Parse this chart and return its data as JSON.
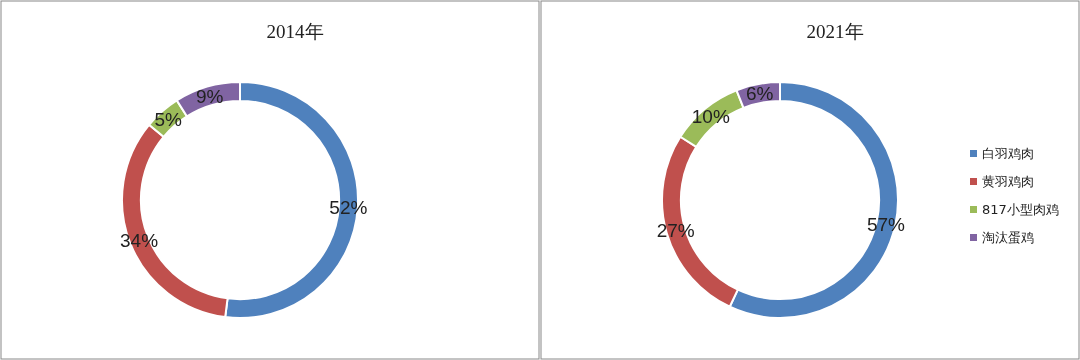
{
  "chart_data": [
    {
      "type": "donut",
      "title": "2014年",
      "categories": [
        null,
        null,
        null,
        null
      ],
      "values": [
        52,
        34,
        5,
        9
      ],
      "colors": [
        "#4f81bd",
        "#c0504d",
        "#9bbb59",
        "#8064a2"
      ],
      "value_labels": [
        "52%",
        "34%",
        "5%",
        "9%"
      ],
      "legend": false
    },
    {
      "type": "donut",
      "title": "2021年",
      "categories": [
        "白羽鸡肉",
        "黄羽鸡肉",
        "817小型肉鸡",
        "淘汰蛋鸡"
      ],
      "values": [
        57,
        27,
        10,
        6
      ],
      "colors": [
        "#4f81bd",
        "#c0504d",
        "#9bbb59",
        "#8064a2"
      ],
      "value_labels": [
        "57%",
        "27%",
        "10%",
        "6%"
      ],
      "legend": "right"
    }
  ]
}
